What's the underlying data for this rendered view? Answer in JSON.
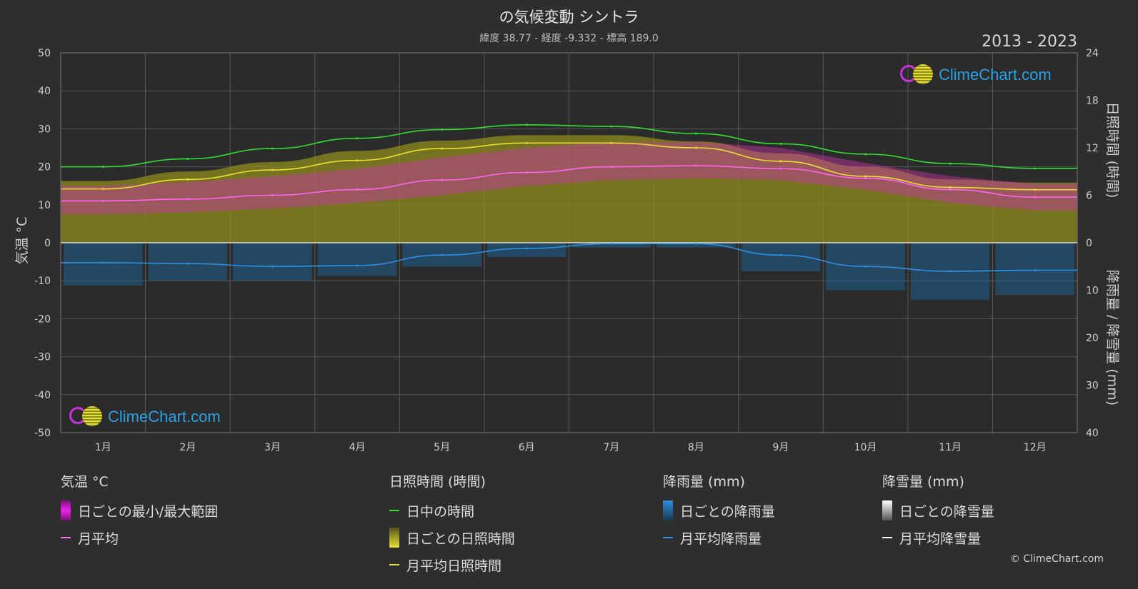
{
  "header": {
    "title": "の気候変動 シントラ",
    "subtitle": "緯度 38.77 - 経度 -9.332 - 標高 189.0",
    "year_range": "2013 - 2023"
  },
  "brand": {
    "name": "ClimeChart.com",
    "copyright": "© ClimeChart.com"
  },
  "axes": {
    "left_label": "気温 °C",
    "right_top_label": "日照時間 (時間)",
    "right_bottom_label": "降雨量 / 降雪量 (mm)"
  },
  "legend": {
    "temperature": {
      "title": "気温 °C",
      "items": [
        "日ごとの最小/最大範囲",
        "月平均"
      ]
    },
    "sunshine": {
      "title": "日照時間 (時間)",
      "items": [
        "日中の時間",
        "日ごとの日照時間",
        "月平均日照時間"
      ]
    },
    "rain": {
      "title": "降雨量 (mm)",
      "items": [
        "日ごとの降雨量",
        "月平均降雨量"
      ]
    },
    "snow": {
      "title": "降雪量 (mm)",
      "items": [
        "日ごとの降雪量",
        "月平均降雪量"
      ]
    }
  },
  "chart_data": {
    "type": "area",
    "categories": [
      "1月",
      "2月",
      "3月",
      "4月",
      "5月",
      "6月",
      "7月",
      "8月",
      "9月",
      "10月",
      "11月",
      "12月"
    ],
    "temperature_axis": {
      "range": [
        -50,
        50
      ],
      "ticks": [
        50,
        40,
        30,
        20,
        10,
        0,
        -10,
        -20,
        -30,
        -40,
        -50
      ],
      "unit": "°C"
    },
    "sunshine_axis": {
      "range": [
        0,
        24
      ],
      "ticks": [
        24,
        18,
        12,
        6,
        0
      ],
      "unit": "時間"
    },
    "precip_axis": {
      "range": [
        0,
        40
      ],
      "ticks": [
        0,
        10,
        20,
        30,
        40
      ],
      "unit": "mm",
      "inverted": true
    },
    "grid": true,
    "series": [
      {
        "name": "日中の時間",
        "axis": "sunshine",
        "color": "#33dd33",
        "values": [
          9.6,
          10.6,
          11.9,
          13.2,
          14.3,
          14.9,
          14.7,
          13.8,
          12.5,
          11.2,
          10.0,
          9.4
        ]
      },
      {
        "name": "月平均日照時間",
        "axis": "sunshine",
        "color": "#e8e030",
        "values": [
          6.8,
          8.0,
          9.2,
          10.4,
          11.9,
          12.6,
          12.6,
          12.0,
          10.3,
          8.4,
          7.0,
          6.7
        ]
      },
      {
        "name": "日ごとの日照時間",
        "axis": "sunshine",
        "color": "#9a9a1e",
        "values": [
          7.8,
          9.0,
          10.2,
          11.6,
          12.9,
          13.6,
          13.6,
          12.8,
          11.3,
          9.6,
          8.0,
          7.6
        ]
      },
      {
        "name": "月平均",
        "axis": "temperature",
        "color": "#ff66ee",
        "values": [
          11.0,
          11.5,
          12.5,
          14.0,
          16.5,
          18.5,
          20.0,
          20.3,
          19.5,
          17.0,
          14.0,
          12.0
        ]
      },
      {
        "name": "日ごとの最小/最大範囲",
        "axis": "temperature",
        "color": "#cc33aa",
        "min": [
          7.5,
          8.0,
          9.0,
          10.5,
          12.5,
          15.0,
          16.5,
          17.0,
          16.5,
          14.0,
          10.5,
          8.5
        ],
        "max": [
          15.0,
          16.0,
          17.5,
          19.5,
          22.5,
          25.0,
          26.5,
          26.5,
          25.0,
          21.0,
          17.5,
          15.5
        ]
      },
      {
        "name": "月平均降雨量",
        "axis": "precip",
        "color": "#2f8fe0",
        "values": [
          4.2,
          4.4,
          5.0,
          4.8,
          2.6,
          1.2,
          0.2,
          0.2,
          2.6,
          5.0,
          6.0,
          5.8
        ]
      },
      {
        "name": "日ごとの降雨量",
        "axis": "precip",
        "color": "#1f5f8f",
        "values": [
          9,
          8,
          8,
          7,
          5,
          3,
          1,
          1,
          6,
          10,
          12,
          11
        ]
      },
      {
        "name": "月平均降雪量",
        "axis": "precip",
        "color": "#ffffff",
        "values": [
          0,
          0,
          0,
          0,
          0,
          0,
          0,
          0,
          0,
          0,
          0,
          0
        ]
      }
    ]
  },
  "colors": {
    "background": "#2e2e2e",
    "daylight": "#33dd33",
    "sunshine": "#e8e030",
    "temp_range": "#cc33aa",
    "temp_mean": "#ff66ee",
    "rain": "#2f8fe0",
    "snow": "#ffffff",
    "brand": "#2aa0e6"
  }
}
